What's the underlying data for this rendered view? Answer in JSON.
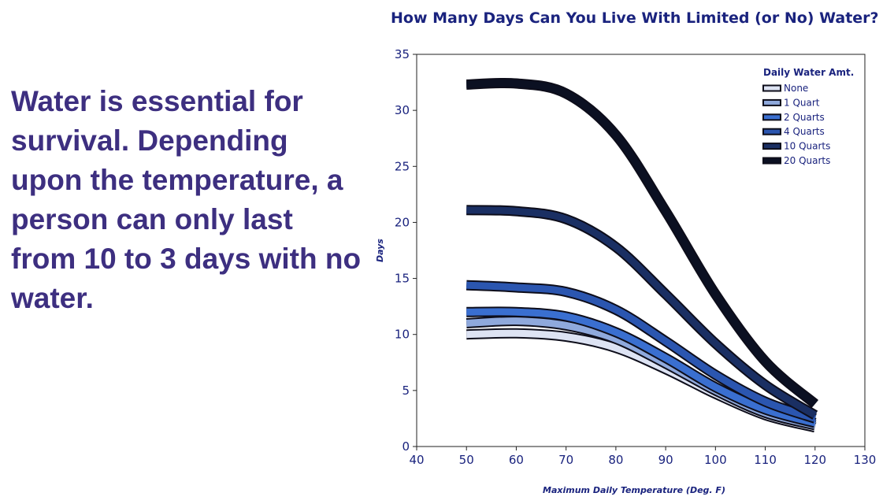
{
  "slide": {
    "body_text": "Water is essential for survival.  Depending upon the temperature, a person can only last from 10 to 3 days with no water."
  },
  "chart_data": {
    "type": "line",
    "title": "How Many Days Can You Live With Limited (or No) Water?",
    "xlabel": "Maximum Daily Temperature (Deg. F)",
    "ylabel": "Days",
    "xlim": [
      40,
      130
    ],
    "ylim": [
      0,
      35
    ],
    "x_ticks": [
      40,
      50,
      60,
      70,
      80,
      90,
      100,
      110,
      120,
      130
    ],
    "y_ticks": [
      0,
      5,
      10,
      15,
      20,
      25,
      30,
      35
    ],
    "legend_title": "Daily Water Amt.",
    "legend_position": "top-right",
    "grid": false,
    "x": [
      50,
      60,
      70,
      80,
      90,
      100,
      110,
      120
    ],
    "series": [
      {
        "name": "None",
        "color": "#dde3f3",
        "values": [
          10.0,
          10.1,
          9.8,
          8.8,
          6.9,
          4.7,
          2.8,
          1.7
        ]
      },
      {
        "name": "1 Quart",
        "color": "#8fa9dc",
        "values": [
          11.0,
          11.2,
          10.8,
          9.6,
          7.4,
          5.0,
          3.0,
          1.9
        ]
      },
      {
        "name": "2 Quarts",
        "color": "#3a6fd0",
        "values": [
          12.0,
          12.0,
          11.6,
          10.2,
          7.9,
          5.3,
          3.3,
          2.1
        ]
      },
      {
        "name": "4 Quarts",
        "color": "#2b56b0",
        "values": [
          14.4,
          14.2,
          13.8,
          12.2,
          9.4,
          6.4,
          4.0,
          2.5
        ]
      },
      {
        "name": "10 Quarts",
        "color": "#1a2f63",
        "values": [
          21.1,
          21.0,
          20.3,
          17.8,
          13.6,
          9.2,
          5.5,
          2.8
        ]
      },
      {
        "name": "20 Quarts",
        "color": "#0b1022",
        "values": [
          32.3,
          32.4,
          31.5,
          27.8,
          21.0,
          13.6,
          7.6,
          3.8
        ]
      }
    ]
  }
}
